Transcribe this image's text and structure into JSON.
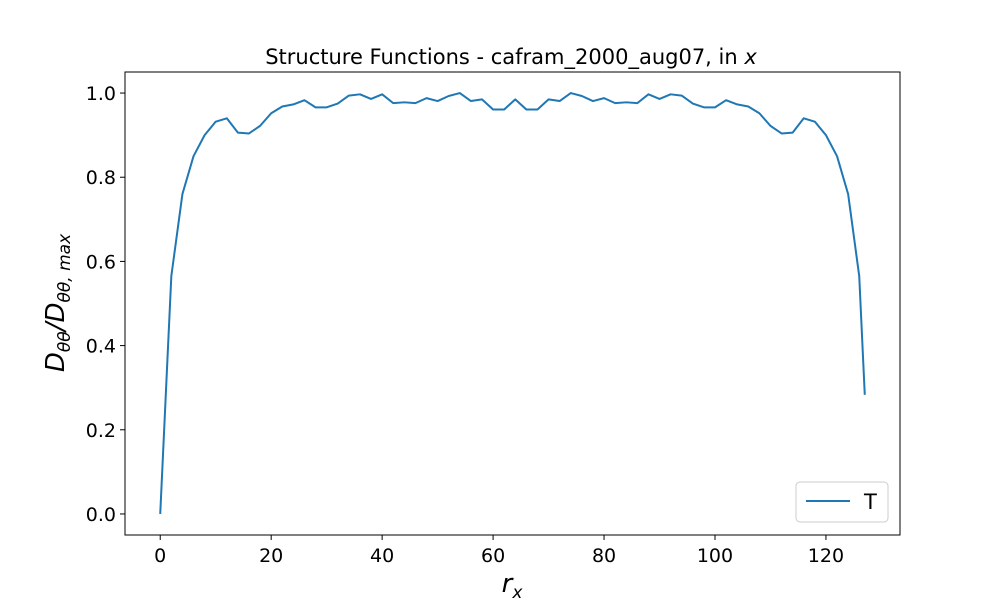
{
  "chart_data": {
    "type": "line",
    "title_prefix": "Structure Functions - cafram_2000_aug07, in ",
    "title_var": "x",
    "xlabel": {
      "main": "r",
      "sub": "x"
    },
    "ylabel": {
      "num_main": "D",
      "num_sub": "θθ",
      "slash": "/",
      "den_main": "D",
      "den_sub": "θθ, max"
    },
    "xlim": [
      -6.35,
      133.35
    ],
    "ylim": [
      -0.05,
      1.05
    ],
    "xticks": [
      0,
      20,
      40,
      60,
      80,
      100,
      120
    ],
    "xtick_labels": [
      "0",
      "20",
      "40",
      "60",
      "80",
      "100",
      "120"
    ],
    "yticks": [
      0.0,
      0.2,
      0.4,
      0.6,
      0.8,
      1.0
    ],
    "ytick_labels": [
      "0.0",
      "0.2",
      "0.4",
      "0.6",
      "0.8",
      "1.0"
    ],
    "grid": false,
    "legend_position": "lower-right",
    "series": [
      {
        "name": "T",
        "color": "#1f77b4",
        "x": [
          0,
          2,
          4,
          6,
          8,
          10,
          12,
          14,
          16,
          18,
          20,
          22,
          24,
          26,
          28,
          30,
          32,
          34,
          36,
          38,
          40,
          42,
          44,
          46,
          48,
          50,
          52,
          54,
          56,
          58,
          60,
          62,
          64,
          66,
          68,
          70,
          72,
          74,
          76,
          78,
          80,
          82,
          84,
          86,
          88,
          90,
          92,
          94,
          96,
          98,
          100,
          102,
          104,
          106,
          108,
          110,
          112,
          114,
          116,
          118,
          120,
          122,
          124,
          126,
          127
        ],
        "y": [
          0.0,
          0.565,
          0.76,
          0.85,
          0.9,
          0.932,
          0.94,
          0.906,
          0.904,
          0.922,
          0.952,
          0.968,
          0.973,
          0.983,
          0.966,
          0.966,
          0.975,
          0.994,
          0.997,
          0.986,
          0.997,
          0.976,
          0.978,
          0.976,
          0.988,
          0.981,
          0.993,
          1.0,
          0.981,
          0.985,
          0.961,
          0.961,
          0.985,
          0.961,
          0.961,
          0.985,
          0.981,
          1.0,
          0.993,
          0.981,
          0.988,
          0.976,
          0.978,
          0.976,
          0.997,
          0.986,
          0.997,
          0.994,
          0.975,
          0.966,
          0.966,
          0.983,
          0.973,
          0.968,
          0.952,
          0.922,
          0.904,
          0.906,
          0.94,
          0.932,
          0.9,
          0.85,
          0.76,
          0.565,
          0.283
        ]
      }
    ]
  }
}
